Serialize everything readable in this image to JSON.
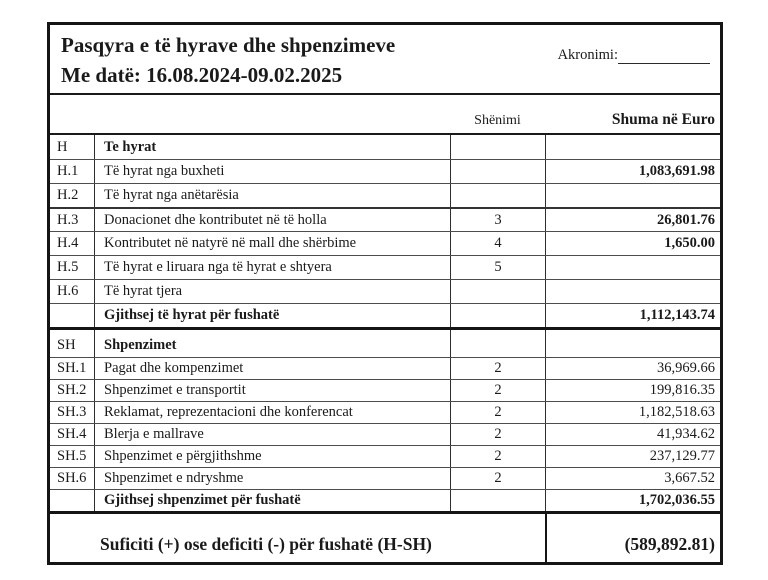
{
  "header": {
    "title": "Pasqyra e të hyrave dhe shpenzimeve",
    "date_line": "Me datë: 16.08.2024-09.02.2025",
    "acronym_label": "Akronimi:"
  },
  "columns": {
    "note": "Shënimi",
    "amount": "Shuma në Euro"
  },
  "table": {
    "rows": [
      {
        "code": "H",
        "desc": "Te hyrat",
        "note": "",
        "amount": ""
      },
      {
        "code": "H.1",
        "desc": "Të hyrat nga buxheti",
        "note": "",
        "amount": "1,083,691.98"
      },
      {
        "code": "H.2",
        "desc": "Të hyrat nga anëtarësia",
        "note": "",
        "amount": ""
      },
      {
        "code": "H.3",
        "desc": "Donacionet dhe kontributet në të holla",
        "note": "3",
        "amount": "26,801.76"
      },
      {
        "code": "H.4",
        "desc": "Kontributet në natyrë në mall dhe shërbime",
        "note": "4",
        "amount": "1,650.00"
      },
      {
        "code": "H.5",
        "desc": "Të hyrat e liruara nga të hyrat e shtyera",
        "note": "5",
        "amount": ""
      },
      {
        "code": "H.6",
        "desc": "Të hyrat tjera",
        "note": "",
        "amount": ""
      },
      {
        "code": "",
        "desc": "Gjithsej të hyrat për fushatë",
        "note": "",
        "amount": "1,112,143.74"
      },
      {
        "code": "SH",
        "desc": "Shpenzimet",
        "note": "",
        "amount": ""
      },
      {
        "code": "SH.1",
        "desc": "Pagat dhe kompenzimet",
        "note": "2",
        "amount": "36,969.66"
      },
      {
        "code": "SH.2",
        "desc": "Shpenzimet e transportit",
        "note": "2",
        "amount": "199,816.35"
      },
      {
        "code": "SH.3",
        "desc": "Reklamat, reprezentacioni dhe konferencat",
        "note": "2",
        "amount": "1,182,518.63"
      },
      {
        "code": "SH.4",
        "desc": "Blerja e mallrave",
        "note": "2",
        "amount": "41,934.62"
      },
      {
        "code": "SH.5",
        "desc": "Shpenzimet e përgjithshme",
        "note": "2",
        "amount": "237,129.77"
      },
      {
        "code": "SH.6",
        "desc": "Shpenzimet e ndryshme",
        "note": "2",
        "amount": "3,667.52"
      },
      {
        "code": "",
        "desc": "Gjithsej shpenzimet për fushatë",
        "note": "",
        "amount": "1,702,036.55"
      }
    ]
  },
  "footer": {
    "label": "Suficiti (+) ose deficiti (-) për fushatë (H-SH)",
    "amount": "(589,892.81)"
  },
  "colors": {
    "ink": "#1a1a1a",
    "border": "#151515",
    "background": "#ffffff"
  }
}
